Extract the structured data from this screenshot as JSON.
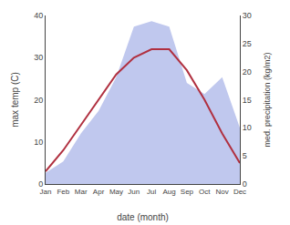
{
  "chart_data": {
    "type": "line",
    "categories": [
      "Jan",
      "Feb",
      "Mar",
      "Apr",
      "May",
      "Jun",
      "Jul",
      "Aug",
      "Sep",
      "Oct",
      "Nov",
      "Dec"
    ],
    "series": [
      {
        "type": "line",
        "color": "#b03040",
        "values": [
          3,
          8,
          14,
          20,
          26,
          30,
          32,
          32,
          27,
          20,
          12,
          5
        ]
      },
      {
        "type": "area",
        "color": "#c0c8ee",
        "axis": "y2",
        "values": [
          2,
          4,
          9,
          13,
          19,
          28,
          29,
          28,
          18,
          16,
          19,
          10
        ]
      }
    ],
    "x_label": "date (month)",
    "y_label": "max temp (C)",
    "y2_label": "med. precipitation (kg/m2)",
    "ylim": [
      0,
      40
    ],
    "yticks": [
      0,
      10,
      20,
      30,
      40
    ],
    "y2lim": [
      0,
      30
    ],
    "y2ticks": [
      0,
      5,
      10,
      15,
      20,
      25,
      30
    ],
    "grid": false
  }
}
